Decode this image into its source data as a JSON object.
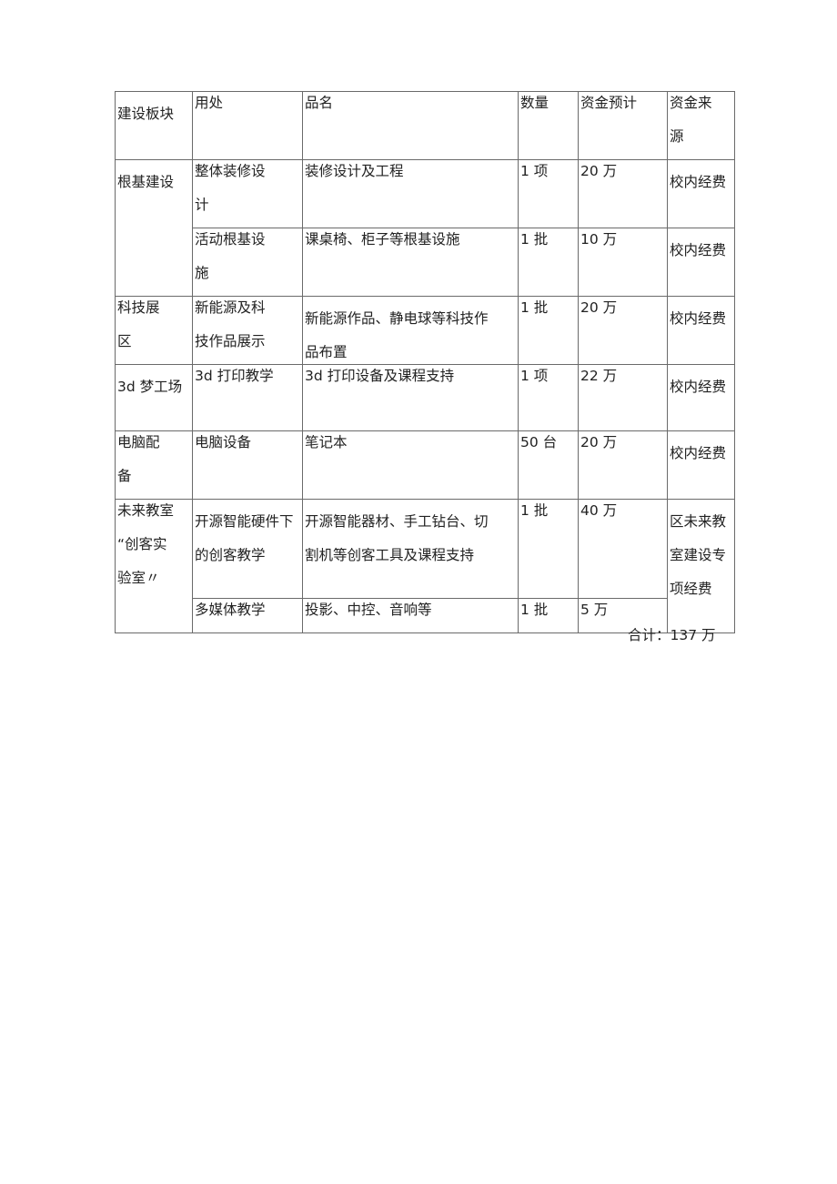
{
  "table": {
    "headers": [
      "建设板块",
      "用处",
      "品名",
      "数量",
      "资金预计",
      "资金来\n源"
    ],
    "rows": [
      {
        "section": "根基建设",
        "use": "整体装修设\n计",
        "item": "装修设计及工程",
        "qty": "1 项",
        "budget": "20 万",
        "source": "校内经费"
      },
      {
        "use": "活动根基设\n施",
        "item": "课桌椅、柜子等根基设施",
        "qty": "1 批",
        "budget": "10 万",
        "source": "校内经费"
      },
      {
        "section": "科技展\n区",
        "use": "新能源及科\n技作品展示",
        "item": "新能源作品、静电球等科技作\n品布置",
        "qty": "1 批",
        "budget": "20 万",
        "source": "校内经费"
      },
      {
        "section": "3d 梦工场",
        "use": "3d 打印教学",
        "item": "3d 打印设备及课程支持",
        "qty": "1 项",
        "budget": "22 万",
        "source": "校内经费"
      },
      {
        "section": "电脑配\n备",
        "use": "电脑设备",
        "item": "笔记本",
        "qty": "50 台",
        "budget": "20 万",
        "source": "校内经费"
      },
      {
        "section": "未来教室\n“创客实\n验室〃",
        "use": "开源智能硬件下\n的创客教学",
        "item": "开源智能器材、手工钻台、切\n割机等创客工具及课程支持",
        "qty": "1 批",
        "budget": "40 万",
        "source": "区未来教\n室建设专\n项经费"
      },
      {
        "use": "多媒体教学",
        "item": "投影、中控、音响等",
        "qty": "1 批",
        "budget": "5 万"
      }
    ]
  },
  "total": "合计：137 万"
}
